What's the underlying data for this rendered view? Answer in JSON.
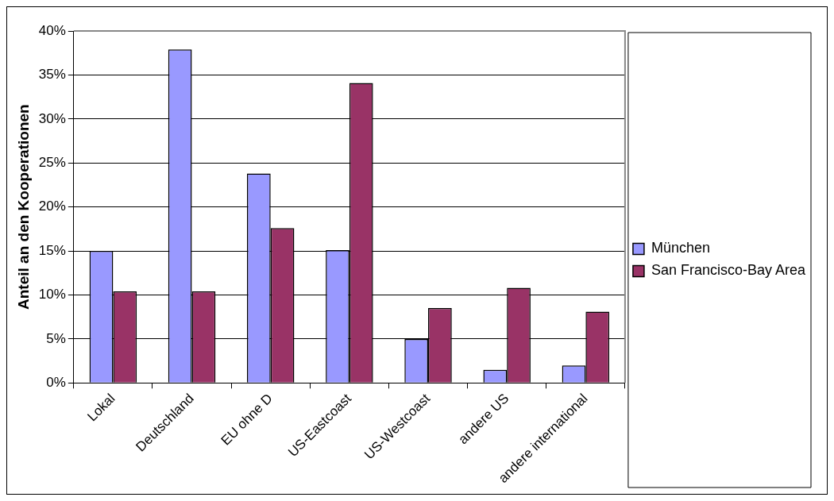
{
  "chart_data": {
    "type": "bar",
    "ylabel": "Anteil an den Kooperationen",
    "categories": [
      "Lokal",
      "Deutschland",
      "EU ohne D",
      "US-Eastcoast",
      "US-Westcoast",
      "andere US",
      "andere international"
    ],
    "series": [
      {
        "name": "München",
        "color": "#9999ff",
        "values": [
          15,
          37.9,
          23.8,
          15.1,
          5,
          1.5,
          2
        ]
      },
      {
        "name": "San Francisco-Bay Area",
        "color": "#993366",
        "values": [
          10.4,
          10.4,
          17.6,
          34.1,
          8.5,
          10.8,
          8.1
        ]
      }
    ],
    "ylim": [
      0,
      40
    ],
    "yticks": [
      {
        "value": 0,
        "label": "0%"
      },
      {
        "value": 5,
        "label": "5%"
      },
      {
        "value": 10,
        "label": "10%"
      },
      {
        "value": 15,
        "label": "15%"
      },
      {
        "value": 20,
        "label": "20%"
      },
      {
        "value": 25,
        "label": "25%"
      },
      {
        "value": 30,
        "label": "30%"
      },
      {
        "value": 35,
        "label": "35%"
      },
      {
        "value": 40,
        "label": "40%"
      }
    ],
    "grid": "y",
    "legend": "right"
  }
}
